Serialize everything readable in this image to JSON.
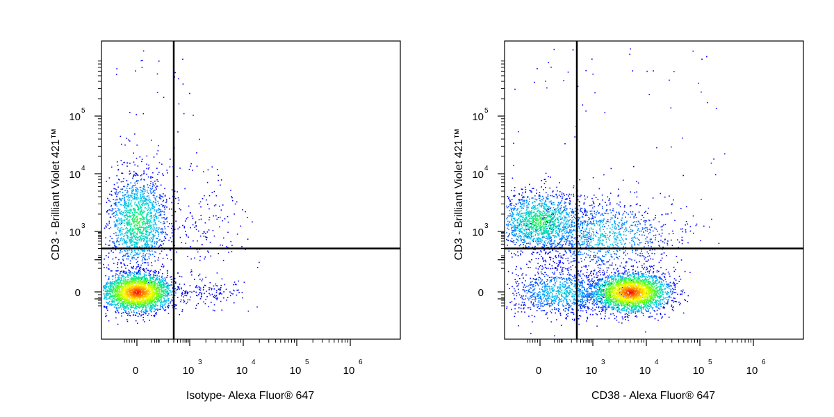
{
  "chart_data": [
    {
      "type": "scatter",
      "subtype": "flow-cytometry-density-dot-plot",
      "title": "",
      "xlabel": "Isotype- Alexa Fluor® 647",
      "ylabel": "CD3 - Brilliant Violet 421™",
      "x_scale": "biexponential",
      "y_scale": "biexponential",
      "x_ticks": [
        {
          "value": 0,
          "base": "0",
          "exp": ""
        },
        {
          "value": 1000,
          "base": "10",
          "exp": "3"
        },
        {
          "value": 10000,
          "base": "10",
          "exp": "4"
        },
        {
          "value": 100000,
          "base": "10",
          "exp": "5"
        },
        {
          "value": 1000000,
          "base": "10",
          "exp": "6"
        }
      ],
      "y_ticks": [
        {
          "value": 0,
          "base": "0",
          "exp": ""
        },
        {
          "value": 1000,
          "base": "10",
          "exp": "3"
        },
        {
          "value": 10000,
          "base": "10",
          "exp": "4"
        },
        {
          "value": 100000,
          "base": "10",
          "exp": "5"
        }
      ],
      "xlim": [
        -100,
        1000000
      ],
      "ylim": [
        -100,
        1000000
      ],
      "quadrant_gate": {
        "x": 300,
        "y": 200
      },
      "populations": [
        {
          "name": "",
          "center": {
            "x": 0,
            "y": 0
          },
          "relative_density": "highest"
        },
        {
          "name": "",
          "center": {
            "x": 0,
            "y": 1500
          },
          "relative_density": "high"
        },
        {
          "name": "",
          "center": {
            "x": 2000,
            "y": 1200
          },
          "relative_density": "sparse"
        },
        {
          "name": "",
          "center": {
            "x": 2000,
            "y": 0
          },
          "relative_density": "sparse"
        }
      ],
      "colormap": [
        "#0000ff",
        "#00b4ff",
        "#00e6a0",
        "#64ff00",
        "#ffff00",
        "#ff8c00",
        "#ff0000"
      ],
      "grid": false,
      "legend": "none"
    },
    {
      "type": "scatter",
      "subtype": "flow-cytometry-density-dot-plot",
      "title": "",
      "xlabel": "CD38 - Alexa Fluor® 647",
      "ylabel": "CD3 - Brilliant Violet 421™",
      "x_scale": "biexponential",
      "y_scale": "biexponential",
      "x_ticks": [
        {
          "value": 0,
          "base": "0",
          "exp": ""
        },
        {
          "value": 1000,
          "base": "10",
          "exp": "3"
        },
        {
          "value": 10000,
          "base": "10",
          "exp": "4"
        },
        {
          "value": 100000,
          "base": "10",
          "exp": "5"
        },
        {
          "value": 1000000,
          "base": "10",
          "exp": "6"
        }
      ],
      "y_ticks": [
        {
          "value": 0,
          "base": "0",
          "exp": ""
        },
        {
          "value": 1000,
          "base": "10",
          "exp": "3"
        },
        {
          "value": 10000,
          "base": "10",
          "exp": "4"
        },
        {
          "value": 100000,
          "base": "10",
          "exp": "5"
        }
      ],
      "xlim": [
        -100,
        1000000
      ],
      "ylim": [
        -100,
        1000000
      ],
      "quadrant_gate": {
        "x": 300,
        "y": 200
      },
      "populations": [
        {
          "name": "",
          "center": {
            "x": 5000,
            "y": 0
          },
          "relative_density": "highest"
        },
        {
          "name": "",
          "center": {
            "x": 0,
            "y": 1500
          },
          "relative_density": "high"
        },
        {
          "name": "",
          "center": {
            "x": 1500,
            "y": 700
          },
          "relative_density": "moderate"
        },
        {
          "name": "",
          "center": {
            "x": 100,
            "y": 0
          },
          "relative_density": "moderate"
        }
      ],
      "colormap": [
        "#0000ff",
        "#00b4ff",
        "#00e6a0",
        "#64ff00",
        "#ffff00",
        "#ff8c00",
        "#ff0000"
      ],
      "grid": false,
      "legend": "none"
    }
  ]
}
